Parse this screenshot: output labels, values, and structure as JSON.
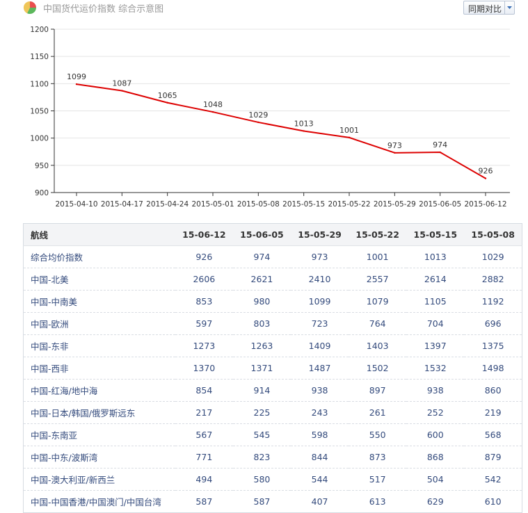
{
  "header": {
    "title": "中国货代运价指数 综合示意图",
    "compare_button": "同期对比"
  },
  "chart_data": {
    "type": "line",
    "title": "",
    "xlabel": "",
    "ylabel": "",
    "categories": [
      "2015-04-10",
      "2015-04-17",
      "2015-04-24",
      "2015-05-01",
      "2015-05-08",
      "2015-05-15",
      "2015-05-22",
      "2015-05-29",
      "2015-06-05",
      "2015-06-12"
    ],
    "series": [
      {
        "values": [
          1099,
          1087,
          1065,
          1048,
          1029,
          1013,
          1001,
          973,
          974,
          926
        ],
        "color": "#dd0000"
      }
    ],
    "ylim": [
      900,
      1200
    ],
    "yticks": [
      900,
      950,
      1000,
      1050,
      1100,
      1150,
      1200
    ],
    "grid": true,
    "legend": "none"
  },
  "table": {
    "headers": [
      "航线",
      "15-06-12",
      "15-06-05",
      "15-05-29",
      "15-05-22",
      "15-05-15",
      "15-05-08"
    ],
    "rows": [
      [
        "综合均价指数",
        "926",
        "974",
        "973",
        "1001",
        "1013",
        "1029"
      ],
      [
        "中国-北美",
        "2606",
        "2621",
        "2410",
        "2557",
        "2614",
        "2882"
      ],
      [
        "中国-中南美",
        "853",
        "980",
        "1099",
        "1079",
        "1105",
        "1192"
      ],
      [
        "中国-欧洲",
        "597",
        "803",
        "723",
        "764",
        "704",
        "696"
      ],
      [
        "中国-东非",
        "1273",
        "1263",
        "1409",
        "1403",
        "1397",
        "1375"
      ],
      [
        "中国-西非",
        "1370",
        "1371",
        "1487",
        "1502",
        "1532",
        "1498"
      ],
      [
        "中国-红海/地中海",
        "854",
        "914",
        "938",
        "897",
        "938",
        "860"
      ],
      [
        "中国-日本/韩国/俄罗斯远东",
        "217",
        "225",
        "243",
        "261",
        "252",
        "219"
      ],
      [
        "中国-东南亚",
        "567",
        "545",
        "598",
        "550",
        "600",
        "568"
      ],
      [
        "中国-中东/波斯湾",
        "771",
        "823",
        "844",
        "873",
        "868",
        "879"
      ],
      [
        "中国-澳大利亚/新西兰",
        "494",
        "580",
        "544",
        "517",
        "504",
        "542"
      ],
      [
        "中国-中国香港/中国澳门/中国台湾",
        "587",
        "587",
        "407",
        "613",
        "629",
        "610"
      ]
    ]
  }
}
